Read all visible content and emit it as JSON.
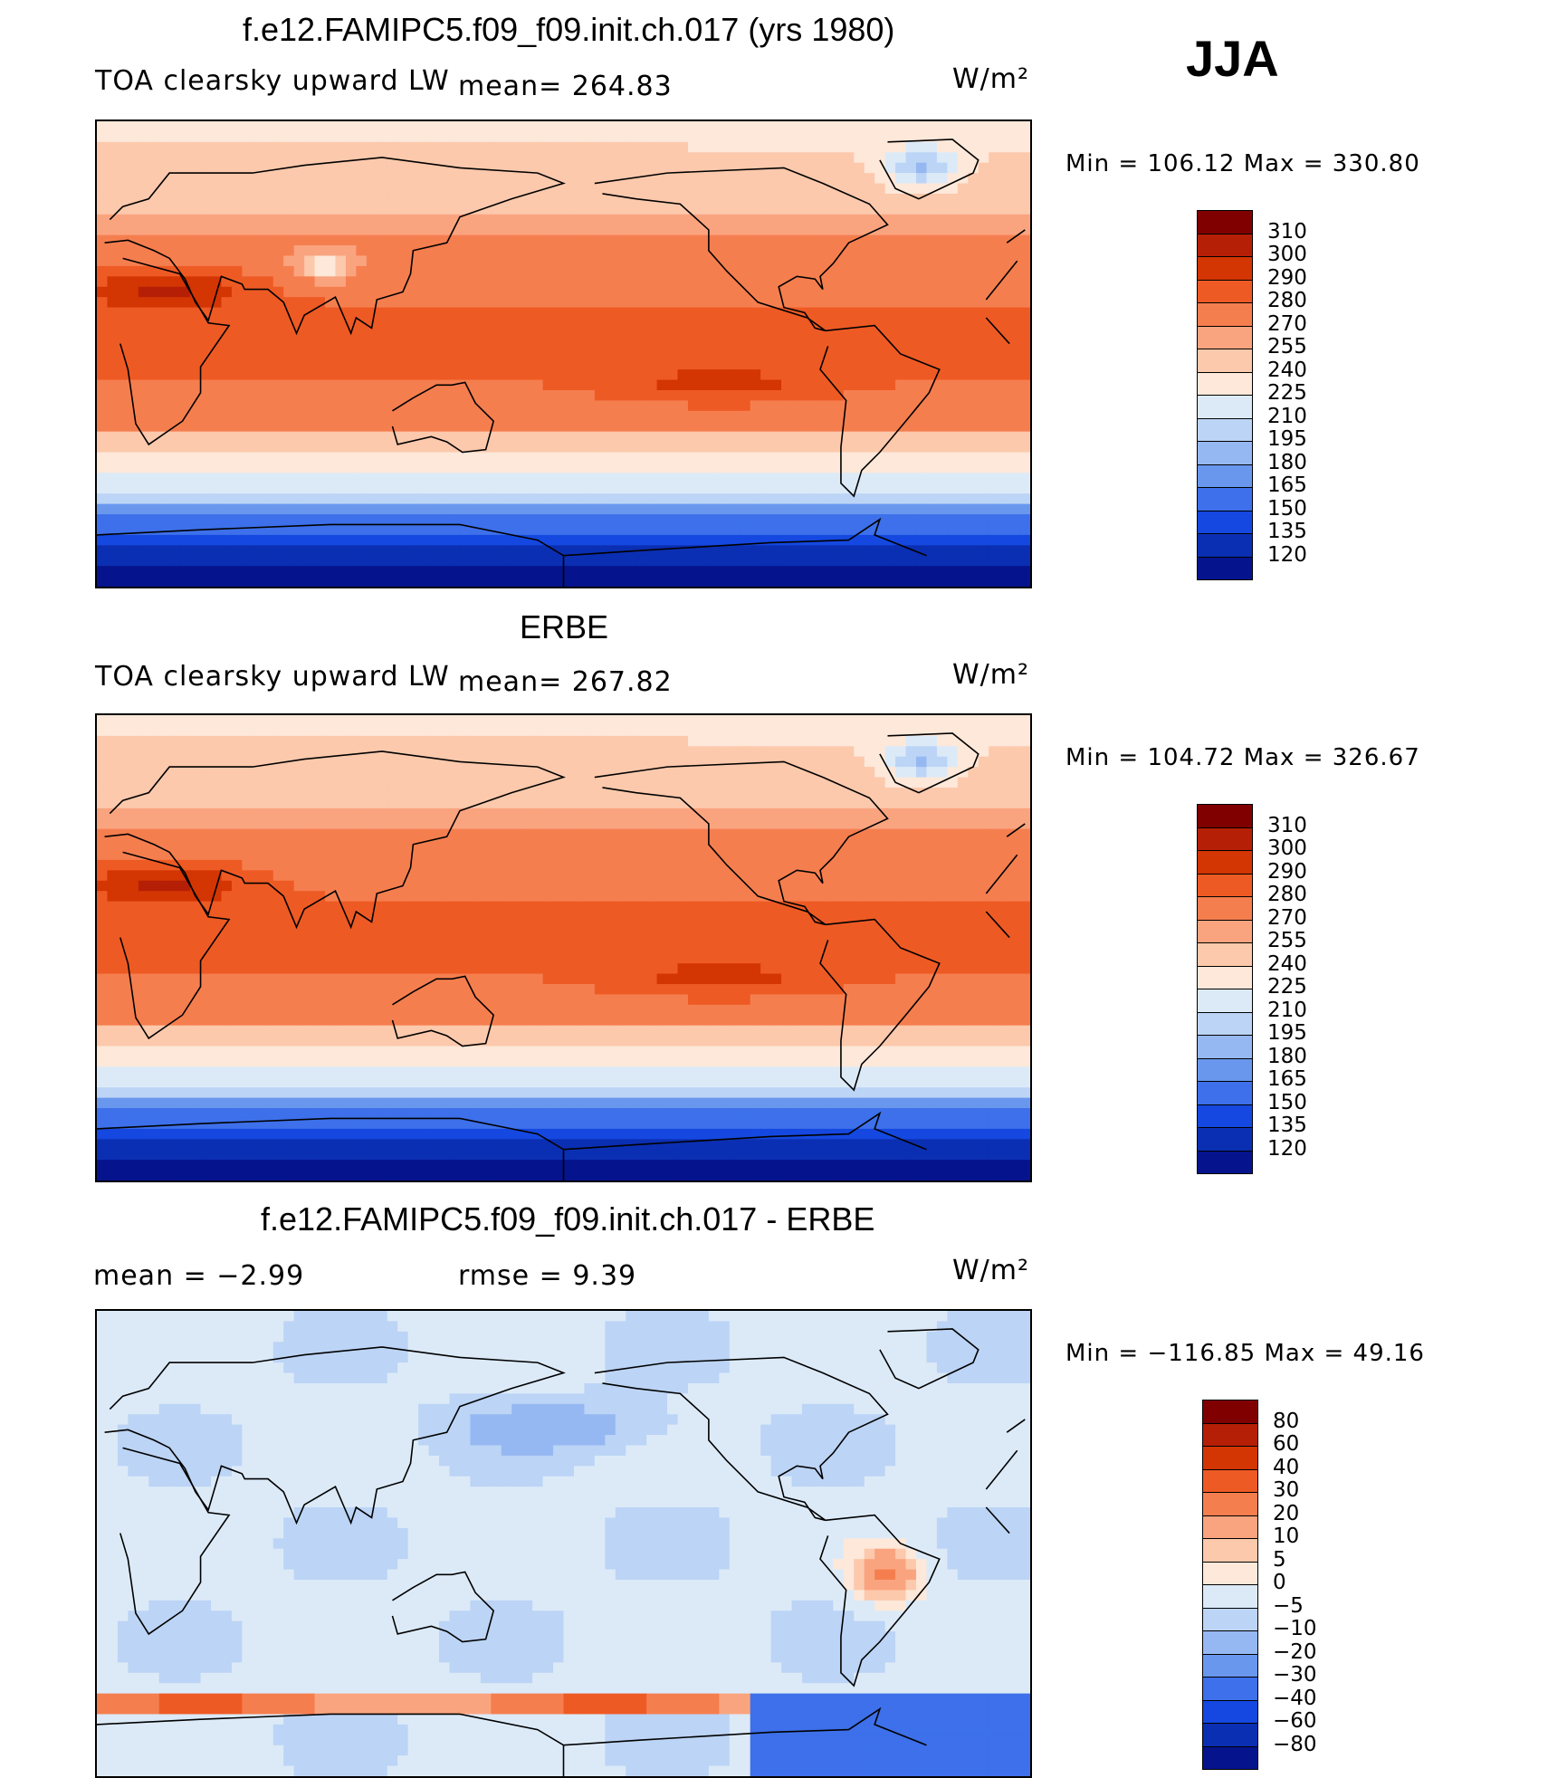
{
  "season": "JJA",
  "panels": [
    {
      "id": "model",
      "title": "f.e12.FAMIPC5.f09_f09.init.ch.017 (yrs 1980)",
      "left_text": "TOA clearsky upward LW",
      "mid_text": "mean= 264.83",
      "units": "W/m²",
      "minmax": "Min  =  106.12  Max  =  330.80"
    },
    {
      "id": "obs",
      "title": "ERBE",
      "left_text": "TOA clearsky upward LW",
      "mid_text": "mean= 267.82",
      "units": "W/m²",
      "minmax": "Min  =  104.72  Max  =  326.67"
    },
    {
      "id": "diff",
      "title": "f.e12.FAMIPC5.f09_f09.init.ch.017 - ERBE",
      "left_text": "mean  =     −2.99",
      "mid_text": "rmse  =      9.39",
      "units": "W/m²",
      "minmax": "Min  =  −116.85  Max  =    49.16"
    }
  ],
  "chart_data": [
    {
      "type": "heatmap",
      "title": "f.e12.FAMIPC5.f09_f09.init.ch.017 (yrs 1980)",
      "variable": "TOA clearsky upward LW",
      "units": "W/m²",
      "mean": 264.83,
      "min": 106.12,
      "max": 330.8,
      "colorbar_levels": [
        310,
        300,
        290,
        280,
        270,
        255,
        240,
        225,
        210,
        195,
        180,
        165,
        150,
        135,
        120
      ],
      "colorbar_colors": [
        "#800000",
        "#b51f06",
        "#d33503",
        "#ee5a24",
        "#f57e4f",
        "#faa47f",
        "#fcc9ac",
        "#fde8d9",
        "#dceaf8",
        "#bcd4f5",
        "#96b8f2",
        "#6a97ee",
        "#3d70ea",
        "#1548e0",
        "#0b2fb3",
        "#05148c"
      ]
    },
    {
      "type": "heatmap",
      "title": "ERBE",
      "variable": "TOA clearsky upward LW",
      "units": "W/m²",
      "mean": 267.82,
      "min": 104.72,
      "max": 326.67,
      "colorbar_levels": [
        310,
        300,
        290,
        280,
        270,
        255,
        240,
        225,
        210,
        195,
        180,
        165,
        150,
        135,
        120
      ],
      "colorbar_colors": [
        "#800000",
        "#b51f06",
        "#d33503",
        "#ee5a24",
        "#f57e4f",
        "#faa47f",
        "#fcc9ac",
        "#fde8d9",
        "#dceaf8",
        "#bcd4f5",
        "#96b8f2",
        "#6a97ee",
        "#3d70ea",
        "#1548e0",
        "#0b2fb3",
        "#05148c"
      ]
    },
    {
      "type": "heatmap",
      "title": "f.e12.FAMIPC5.f09_f09.init.ch.017 - ERBE",
      "units": "W/m²",
      "mean": -2.99,
      "rmse": 9.39,
      "min": -116.85,
      "max": 49.16,
      "colorbar_levels": [
        "80",
        "60",
        "40",
        "30",
        "20",
        "10",
        "5",
        "0",
        "−5",
        "−10",
        "−20",
        "−30",
        "−40",
        "−60",
        "−80"
      ],
      "colorbar_colors": [
        "#800000",
        "#b51f06",
        "#d33503",
        "#ee5a24",
        "#f57e4f",
        "#faa47f",
        "#fcc9ac",
        "#fde8d9",
        "#dceaf8",
        "#bcd4f5",
        "#96b8f2",
        "#6a97ee",
        "#3d70ea",
        "#1548e0",
        "#0b2fb3",
        "#05148c"
      ]
    }
  ]
}
